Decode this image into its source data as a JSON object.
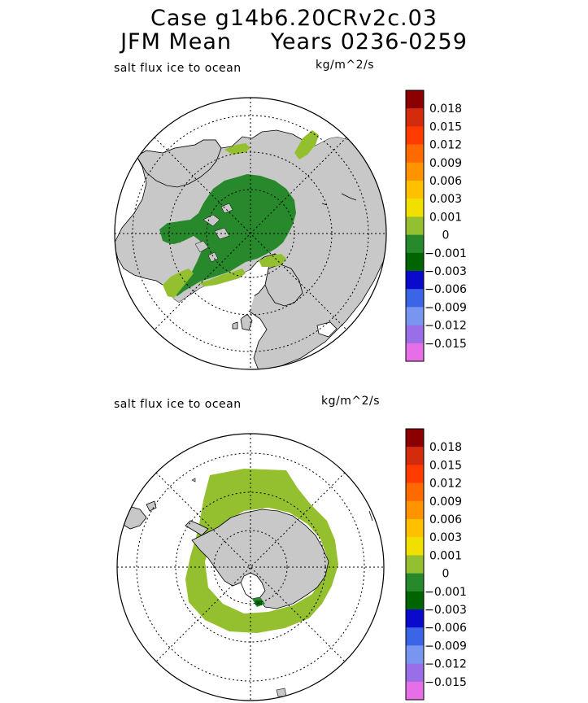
{
  "header": {
    "title_line1": "Case g14b6.20CRv2c.03",
    "title_line2": "JFM Mean     Years 0236-0259"
  },
  "panels": [
    {
      "id": "north",
      "hemisphere": "Northern",
      "variable_label": "salt flux ice to ocean",
      "units": "kg/m^2/s"
    },
    {
      "id": "south",
      "hemisphere": "Southern",
      "variable_label": "salt flux ice to ocean",
      "units": "kg/m^2/s"
    }
  ],
  "colorbar": {
    "tick_labels": [
      "0.018",
      "0.015",
      "0.012",
      "0.009",
      "0.006",
      "0.003",
      "0.001",
      "0",
      "−0.001",
      "−0.003",
      "−0.006",
      "−0.009",
      "−0.012",
      "−0.015"
    ],
    "colors": [
      "#8b0000",
      "#d42a0e",
      "#ff3b00",
      "#ff6a00",
      "#ff9400",
      "#ffc000",
      "#f0e000",
      "#94bf2e",
      "#27892b",
      "#006400",
      "#0a0acd",
      "#3c64e6",
      "#7896f0",
      "#9a6ee6",
      "#e66ee6"
    ]
  },
  "map_colors": {
    "land": "#c8c8c8",
    "ocean": "#ffffff",
    "ice_light_green": "#94bf2e",
    "ice_dark_green": "#27892b"
  }
}
